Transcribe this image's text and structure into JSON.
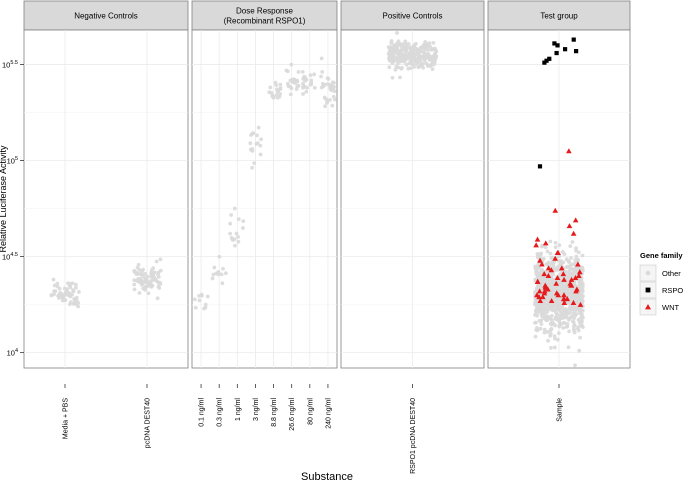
{
  "chart_data": {
    "type": "scatter",
    "scale": "log10",
    "ylim_log10": [
      3.92,
      5.68
    ],
    "yticks": [
      {
        "log10": 4.0,
        "base": "10",
        "exp": "4"
      },
      {
        "log10": 4.5,
        "base": "10",
        "exp": "4.5"
      },
      {
        "log10": 5.0,
        "base": "10",
        "exp": "5"
      },
      {
        "log10": 5.5,
        "base": "10",
        "exp": "5.5"
      }
    ],
    "ylabel": "Relative Luciferase Activity",
    "xlabel": "Substance",
    "grid": true,
    "legend": {
      "title": "Gene family",
      "position": "right",
      "items": [
        {
          "label": "Other",
          "shape": "circle",
          "color": "#d9d9d9"
        },
        {
          "label": "RSPO",
          "shape": "square",
          "color": "#000000"
        },
        {
          "label": "WNT",
          "shape": "triangle",
          "color": "#e41a1c"
        }
      ]
    },
    "facets": [
      {
        "title_lines": [
          "Negative Controls"
        ],
        "categories": [
          "Media + PBS",
          "pcDNA DEST40"
        ],
        "groups": [
          {
            "category": "Media + PBS",
            "family": "Other",
            "center_log10": 4.31,
            "spread_log10": 0.035,
            "n": 60
          },
          {
            "category": "pcDNA DEST40",
            "family": "Other",
            "center_log10": 4.38,
            "spread_log10": 0.04,
            "n": 80
          }
        ]
      },
      {
        "title_lines": [
          "Dose Response",
          "(Recombinant RSPO1)"
        ],
        "categories": [
          "0.1 ng/ml",
          "0.3 ng/ml",
          "1 ng/ml",
          "3 ng/ml",
          "8.8 ng/ml",
          "26.6 ng/ml",
          "80 ng/ml",
          "240 ng/ml"
        ],
        "groups": [
          {
            "category": "0.1 ng/ml",
            "family": "Other",
            "center_log10": 4.28,
            "spread_log10": 0.03,
            "n": 10
          },
          {
            "category": "0.3 ng/ml",
            "family": "Other",
            "center_log10": 4.41,
            "spread_log10": 0.035,
            "n": 12
          },
          {
            "category": "1 ng/ml",
            "family": "Other",
            "center_log10": 4.66,
            "spread_log10": 0.06,
            "n": 14
          },
          {
            "category": "3 ng/ml",
            "family": "Other",
            "center_log10": 5.05,
            "spread_log10": 0.08,
            "n": 16
          },
          {
            "category": "8.8 ng/ml",
            "family": "Other",
            "center_log10": 5.36,
            "spread_log10": 0.03,
            "n": 20
          },
          {
            "category": "26.6 ng/ml",
            "family": "Other",
            "center_log10": 5.41,
            "spread_log10": 0.03,
            "n": 22
          },
          {
            "category": "80 ng/ml",
            "family": "Other",
            "center_log10": 5.41,
            "spread_log10": 0.03,
            "n": 22
          },
          {
            "category": "240 ng/ml",
            "family": "Other",
            "center_log10": 5.38,
            "spread_log10": 0.04,
            "n": 30
          }
        ]
      },
      {
        "title_lines": [
          "Positive Controls"
        ],
        "categories": [
          "RSPO1 pcDNA DEST40"
        ],
        "groups": [
          {
            "category": "RSPO1 pcDNA DEST40",
            "family": "Other",
            "center_log10": 5.55,
            "spread_log10": 0.035,
            "n": 260
          }
        ]
      },
      {
        "title_lines": [
          "Test group"
        ],
        "categories": [
          "Sample"
        ],
        "groups": [
          {
            "category": "Sample",
            "family": "Other",
            "center_log10": 4.31,
            "spread_log10": 0.1,
            "n": 900
          }
        ],
        "rspo_points_log10": [
          5.63,
          5.6,
          5.57,
          5.61,
          5.52,
          5.51,
          5.53,
          5.58,
          5.56,
          4.97
        ],
        "wnt_points_log10": [
          5.05,
          4.74,
          4.66,
          4.69,
          4.62,
          4.57,
          4.59,
          4.56,
          4.52,
          4.49,
          4.46,
          4.46,
          4.44,
          4.43,
          4.42,
          4.41,
          4.4,
          4.4,
          4.39,
          4.38,
          4.38,
          4.37,
          4.36,
          4.35,
          4.35,
          4.34,
          4.33,
          4.33,
          4.32,
          4.32,
          4.31,
          4.31,
          4.3,
          4.3,
          4.29,
          4.29,
          4.28,
          4.28,
          4.27,
          4.27,
          4.26,
          4.26,
          4.25,
          4.44,
          4.48,
          4.52,
          4.37,
          4.41,
          4.34,
          4.3,
          4.36,
          4.39,
          4.32,
          4.28,
          4.35
        ]
      }
    ]
  }
}
